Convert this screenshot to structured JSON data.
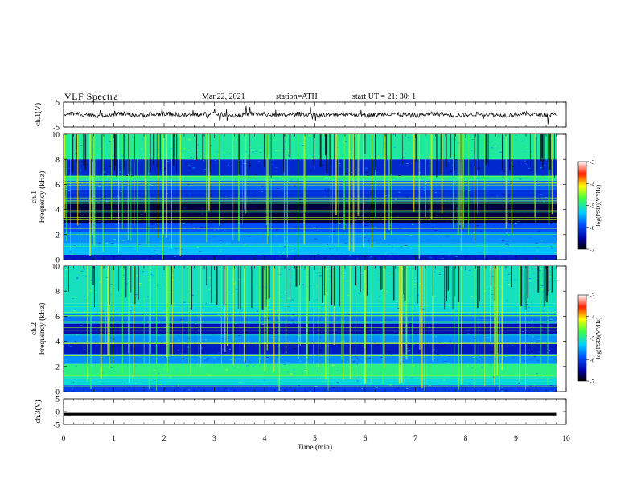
{
  "header": {
    "title": "VLF  Spectra",
    "date": "Mar.22, 2021",
    "station": "station=ATH",
    "start": "start  UT  =   21: 30: 1"
  },
  "chart_data": [
    {
      "type": "line",
      "panel": "ch1-waveform",
      "ylabel": "ch.1(V)",
      "ylim": [
        -5,
        5
      ],
      "yticks": [
        5,
        -5
      ],
      "xlim": [
        0,
        10
      ],
      "trace": "noisy waveform centred near 0 V, spanning about 0 to 9.8 min"
    },
    {
      "type": "heatmap",
      "panel": "ch1-spectrogram",
      "ylabel": "ch.1\nFrequency  (kHz)",
      "ylim": [
        0,
        10
      ],
      "yticks": [
        0,
        2,
        4,
        6,
        8,
        10
      ],
      "xlim": [
        0,
        10
      ],
      "colorbar": {
        "label": "log(PSD)(V²/Hz)",
        "range": [
          -7,
          -3
        ],
        "ticks": [
          -3,
          -4,
          -5,
          -6,
          -7
        ]
      },
      "bands_khz": [
        {
          "from": 0,
          "to": 0.4,
          "level": -6.3
        },
        {
          "from": 0.4,
          "to": 1.3,
          "level": -5.4
        },
        {
          "from": 1.3,
          "to": 2.2,
          "level": -5.6
        },
        {
          "from": 2.2,
          "to": 2.9,
          "level": -5.9
        },
        {
          "from": 2.9,
          "to": 4.6,
          "level": -6.8
        },
        {
          "from": 4.6,
          "to": 5.6,
          "level": -6.1
        },
        {
          "from": 5.6,
          "to": 6.3,
          "level": -5.8
        },
        {
          "from": 6.3,
          "to": 6.7,
          "level": -5.0
        },
        {
          "from": 6.7,
          "to": 8.0,
          "level": -6.2
        },
        {
          "from": 8.0,
          "to": 10,
          "level": -5.0
        }
      ]
    },
    {
      "type": "heatmap",
      "panel": "ch2-spectrogram",
      "ylabel": "ch.2\nFrequency  (kHz)",
      "ylim": [
        0,
        10
      ],
      "yticks": [
        0,
        2,
        4,
        6,
        8,
        10
      ],
      "xlim": [
        0,
        10
      ],
      "colorbar": {
        "label": "log(PSD)(V²/Hz)",
        "range": [
          -7,
          -3
        ],
        "ticks": [
          -3,
          -4,
          -5,
          -6,
          -7
        ]
      },
      "bands_khz": [
        {
          "from": 0,
          "to": 0.5,
          "level": -6.0
        },
        {
          "from": 0.5,
          "to": 1.2,
          "level": -5.2
        },
        {
          "from": 1.2,
          "to": 2.2,
          "level": -4.9
        },
        {
          "from": 2.2,
          "to": 3.0,
          "level": -5.6
        },
        {
          "from": 3.0,
          "to": 3.8,
          "level": -6.3
        },
        {
          "from": 3.8,
          "to": 4.6,
          "level": -5.6
        },
        {
          "from": 4.6,
          "to": 5.4,
          "level": -6.4
        },
        {
          "from": 5.4,
          "to": 6.2,
          "level": -5.7
        },
        {
          "from": 6.2,
          "to": 7.0,
          "level": -5.2
        },
        {
          "from": 7.0,
          "to": 10,
          "level": -5.1
        }
      ]
    },
    {
      "type": "line",
      "panel": "ch3-waveform",
      "ylabel": "ch.3(V)",
      "ylim": [
        -5,
        5
      ],
      "yticks": [
        5,
        0,
        -5
      ],
      "xlim": [
        0,
        10
      ],
      "trace": "thick flat line near -1 V, spanning about 0 to 9.8 min"
    }
  ],
  "xaxis": {
    "label": "Time  (min)",
    "ticks": [
      0,
      1,
      2,
      3,
      4,
      5,
      6,
      7,
      8,
      9,
      10
    ]
  }
}
